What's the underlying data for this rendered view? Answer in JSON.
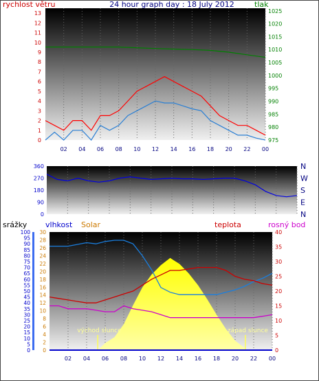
{
  "header": {
    "title": "24 hour graph day : 18 July 2012",
    "left_label": "rychlost větru",
    "right_label": "tlak"
  },
  "colors": {
    "wind": "#ff0000",
    "gust_avg": "#2a7fd4",
    "pressure": "#008000",
    "direction": "#0000e0",
    "humidity": "#1a7fe0",
    "temperature": "#cc0000",
    "dewpoint": "#cc00cc",
    "solar": "#ffff00",
    "rain": "#0000cc",
    "sun_marker": "#ffff55"
  },
  "chart_data": [
    {
      "type": "line",
      "name": "wind-pressure",
      "x_ticks": [
        "02",
        "04",
        "06",
        "08",
        "10",
        "12",
        "14",
        "16",
        "18",
        "20",
        "22",
        "00"
      ],
      "y_left_ticks": [
        "0",
        "1",
        "2",
        "3",
        "4",
        "5",
        "6",
        "7",
        "8",
        "9",
        "10",
        "11",
        "12",
        "13"
      ],
      "y_right_ticks": [
        "975",
        "980",
        "985",
        "990",
        "995",
        "1000",
        "1005",
        "1010",
        "1015",
        "1020",
        "1025"
      ],
      "ylim_left": [
        0,
        13.5
      ],
      "ylim_right": [
        975,
        1026
      ],
      "series": [
        {
          "key": "pressure",
          "x": [
            0,
            2,
            4,
            6,
            8,
            10,
            12,
            14,
            16,
            18,
            20,
            22,
            24
          ],
          "values": [
            1011,
            1011,
            1011,
            1011,
            1011,
            1010.7,
            1010.4,
            1010.2,
            1010,
            1009.7,
            1009,
            1008,
            1007
          ]
        },
        {
          "key": "wind_avg",
          "x": [
            0,
            1,
            2,
            3,
            4,
            5,
            6,
            7,
            8,
            9,
            10,
            11,
            12,
            13,
            14,
            15,
            16,
            17,
            18,
            19,
            20,
            21,
            22,
            23,
            24
          ],
          "values": [
            0,
            0.8,
            0,
            1,
            1,
            0,
            1.5,
            1,
            1.5,
            2.5,
            3,
            3.5,
            4,
            3.8,
            3.8,
            3.5,
            3.2,
            3,
            2,
            1.5,
            1,
            0.5,
            0.5,
            0.2,
            0
          ]
        },
        {
          "key": "wind_gust",
          "x": [
            0,
            1,
            2,
            3,
            4,
            5,
            6,
            7,
            8,
            9,
            10,
            11,
            12,
            13,
            14,
            15,
            16,
            17,
            18,
            19,
            20,
            21,
            22,
            23,
            24
          ],
          "values": [
            2,
            1.5,
            1,
            2,
            2,
            1,
            2.5,
            2.5,
            3,
            4,
            5,
            5.5,
            6,
            6.5,
            6,
            5.5,
            5,
            4.5,
            3.5,
            2.5,
            2,
            1.5,
            1.5,
            1,
            0.5
          ]
        }
      ]
    },
    {
      "type": "line",
      "name": "wind-direction",
      "y_ticks": [
        "360",
        "270",
        "180",
        "90",
        "0"
      ],
      "y_right_labels": [
        "N",
        "W",
        "S",
        "E",
        "N"
      ],
      "ylim": [
        0,
        360
      ],
      "series": [
        {
          "key": "direction",
          "x": [
            0,
            1,
            2,
            3,
            4,
            5,
            6,
            7,
            8,
            9,
            10,
            11,
            12,
            13,
            14,
            15,
            16,
            17,
            18,
            19,
            20,
            21,
            22,
            23,
            24
          ],
          "values": [
            300,
            260,
            250,
            270,
            250,
            240,
            250,
            270,
            280,
            270,
            260,
            265,
            270,
            265,
            265,
            260,
            265,
            270,
            270,
            250,
            220,
            170,
            140,
            130,
            140
          ]
        }
      ]
    },
    {
      "type": "line",
      "name": "temp-humidity-solar",
      "labels": {
        "rain": "srážky",
        "humidity": "vlhkost",
        "solar": "Solar",
        "temperature": "teplota",
        "dewpoint": "rosný bod"
      },
      "sunrise_label": "východ slunce",
      "sunset_label": "západ slunce",
      "y_rain_ticks": [
        "0",
        "5",
        "10",
        "15",
        "20",
        "25",
        "30",
        "35",
        "40",
        "45",
        "50",
        "55",
        "60",
        "65",
        "70",
        "75",
        "80",
        "85",
        "90",
        "95",
        "100"
      ],
      "y_humid_ticks": [
        "0",
        "2",
        "4",
        "6",
        "8",
        "10",
        "12",
        "14",
        "16",
        "18",
        "20",
        "22",
        "24",
        "26",
        "28",
        "30"
      ],
      "y_temp_ticks": [
        "0",
        "5",
        "10",
        "15",
        "20",
        "25",
        "30",
        "35",
        "40"
      ],
      "ylim_humidity": [
        0,
        100
      ],
      "ylim_temperature": [
        0,
        40
      ],
      "series": [
        {
          "key": "humidity",
          "x": [
            0,
            2,
            4,
            5,
            6,
            7,
            8,
            9,
            10,
            11,
            12,
            13,
            14,
            15,
            16,
            17,
            18,
            19,
            20,
            21,
            22,
            23,
            24
          ],
          "values": [
            88,
            88,
            91,
            90,
            92,
            93,
            93,
            90,
            80,
            68,
            53,
            49,
            47,
            47,
            47,
            47,
            47,
            49,
            51,
            54,
            58,
            61,
            65
          ]
        },
        {
          "key": "temperature",
          "x": [
            0,
            1,
            2,
            3,
            4,
            5,
            6,
            7,
            8,
            9,
            10,
            11,
            12,
            13,
            14,
            15,
            16,
            17,
            18,
            19,
            20,
            21,
            22,
            23,
            24
          ],
          "values": [
            18,
            17.5,
            17,
            16.5,
            16,
            16,
            17,
            18,
            19,
            20,
            22,
            24,
            25.5,
            27,
            27,
            27.5,
            28,
            28,
            28,
            27,
            25,
            24,
            23.5,
            22.5,
            22
          ]
        },
        {
          "key": "dewpoint",
          "x": [
            0,
            1,
            2,
            3,
            4,
            5,
            6,
            7,
            8,
            9,
            10,
            11,
            12,
            13,
            14,
            15,
            16,
            17,
            18,
            19,
            20,
            21,
            22,
            23,
            24
          ],
          "values": [
            15,
            15,
            14,
            14,
            14,
            13.5,
            13,
            13,
            15,
            14,
            13.5,
            13,
            12,
            11,
            11,
            11,
            11,
            11,
            11,
            11,
            11,
            11,
            11,
            11.5,
            12
          ]
        },
        {
          "key": "solar",
          "x": [
            5.2,
            6,
            7,
            8,
            9,
            10,
            11,
            12,
            13,
            14,
            15,
            16,
            17,
            18,
            19,
            20,
            21,
            21.2
          ],
          "values": [
            0,
            6,
            11,
            22,
            38,
            53,
            64,
            72,
            78,
            73,
            65,
            55,
            43,
            30,
            18,
            8,
            2,
            0
          ]
        },
        {
          "key": "rain",
          "x": [
            0,
            24
          ],
          "values": [
            0,
            0
          ]
        }
      ],
      "sun_events": {
        "sunrise_hour": 5.2,
        "sunset_hour": 21.1
      }
    }
  ]
}
